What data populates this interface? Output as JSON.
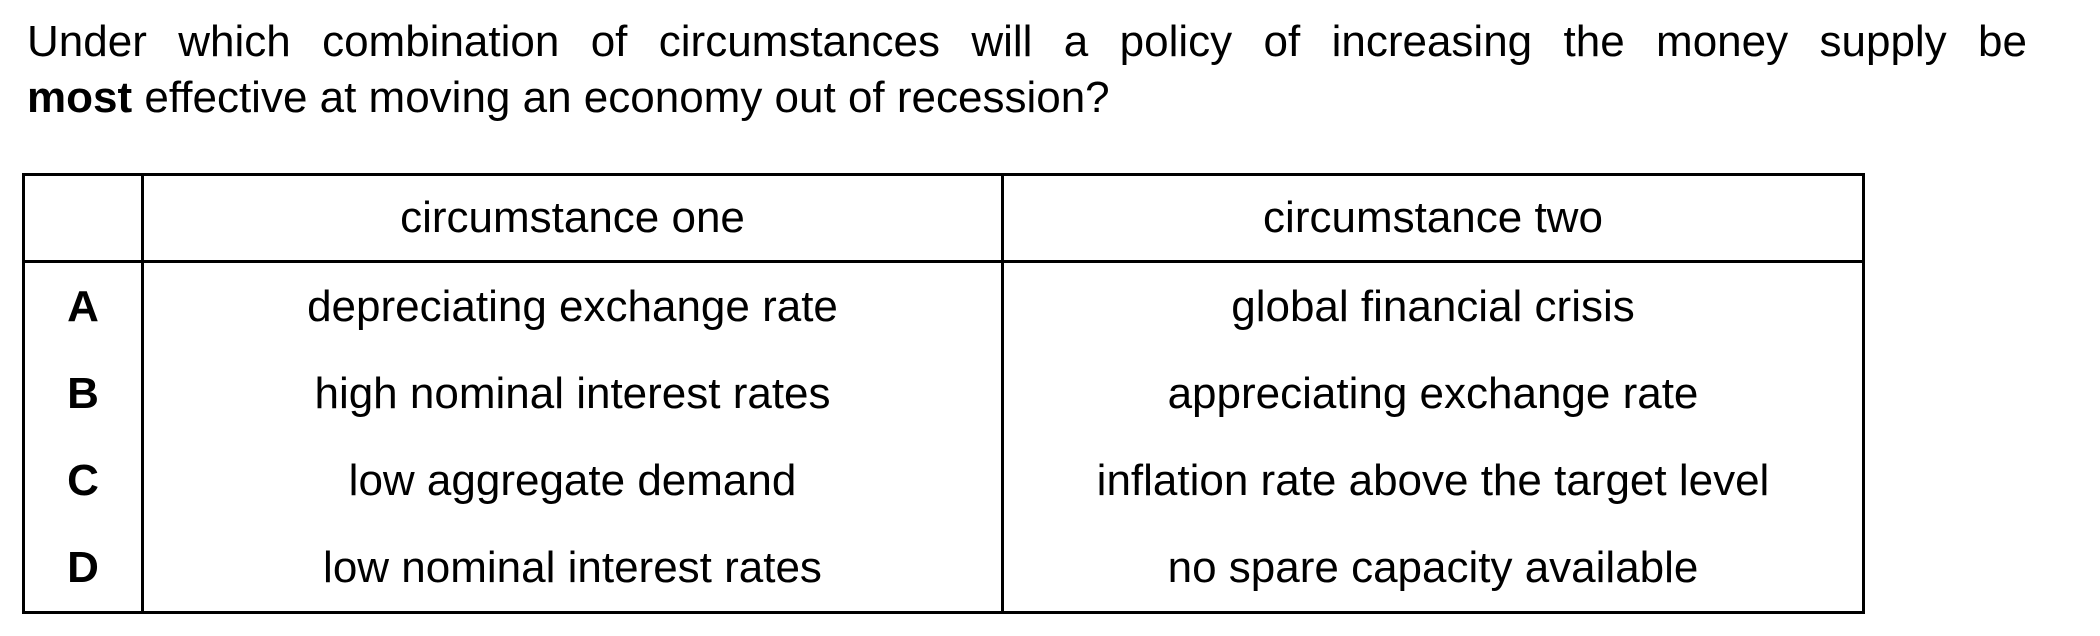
{
  "question": {
    "line1": "Under which combination of circumstances will a policy of increasing the money supply be",
    "emphasis": "most",
    "line2_rest": " effective at moving an economy out of recession?"
  },
  "table": {
    "headers": [
      "",
      "circumstance one",
      "circumstance two"
    ],
    "rows": [
      {
        "letter": "A",
        "one": "depreciating exchange rate",
        "two": "global financial crisis"
      },
      {
        "letter": "B",
        "one": "high nominal interest rates",
        "two": "appreciating exchange rate"
      },
      {
        "letter": "C",
        "one": "low aggregate demand",
        "two": "inflation rate above the target level"
      },
      {
        "letter": "D",
        "one": "low nominal interest rates",
        "two": "no spare capacity available"
      }
    ]
  }
}
